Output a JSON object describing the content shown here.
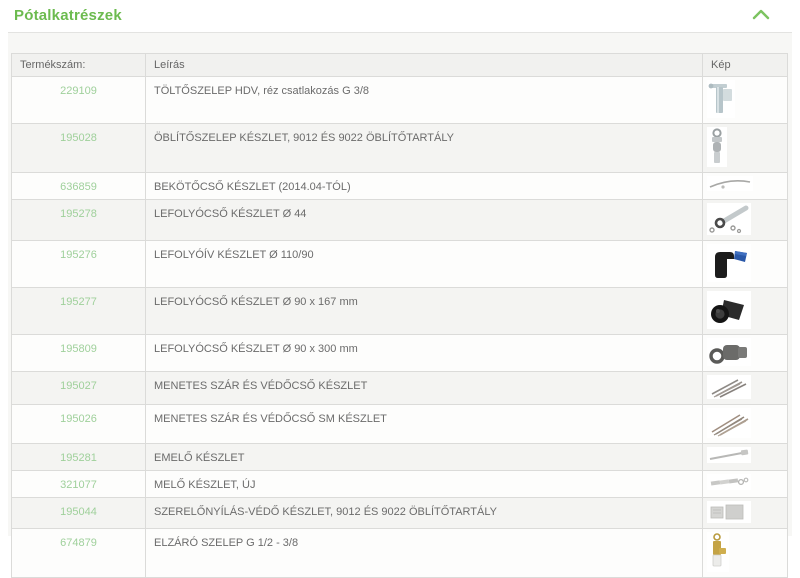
{
  "accordion": {
    "title": "Pótalkatrészek",
    "chevron_icon": "chevron-up",
    "accent_green": "#6cbb4f",
    "link_green": "#9fd09b"
  },
  "table": {
    "headers": {
      "product_number": "Termékszám:",
      "description": "Leírás",
      "image": "Kép"
    },
    "rows": [
      {
        "product_number": "229109",
        "description": "TÖLTŐSZELEP HDV, réz csatlakozás G 3/8",
        "image": "fill-valve-thumb"
      },
      {
        "product_number": "195028",
        "description": "ÖBLÍTŐSZELEP KÉSZLET, 9012 ÉS 9022 ÖBLÍTŐTARTÁLY",
        "image": "flush-valve-thumb"
      },
      {
        "product_number": "636859",
        "description": "BEKÖTŐCSŐ KÉSZLET (2014.04-TÓL)",
        "image": "curved-pipe-thumb"
      },
      {
        "product_number": "195278",
        "description": "LEFOLYÓCSŐ KÉSZLET Ø 44",
        "image": "pipe-parts-thumb"
      },
      {
        "product_number": "195276",
        "description": "LEFOLYÓÍV KÉSZLET Ø 110/90",
        "image": "elbow-thumb"
      },
      {
        "product_number": "195277",
        "description": "LEFOLYÓCSŐ KÉSZLET Ø 90 x 167 mm",
        "image": "fitting-black-thumb"
      },
      {
        "product_number": "195809",
        "description": "LEFOLYÓCSŐ KÉSZLET Ø 90 x 300 mm",
        "image": "fitting-gray-thumb"
      },
      {
        "product_number": "195027",
        "description": "MENETES SZÁR ÉS VÉDŐCSŐ KÉSZLET",
        "image": "rod-bundle-thumb"
      },
      {
        "product_number": "195026",
        "description": "MENETES SZÁR ÉS VÉDŐCSŐ SM KÉSZLET",
        "image": "rod-bundle-sm-thumb"
      },
      {
        "product_number": "195281",
        "description": "EMELŐ KÉSZLET",
        "image": "lever-thumb"
      },
      {
        "product_number": "321077",
        "description": "MELŐ KÉSZLET, ÚJ",
        "image": "parts-strip-thumb"
      },
      {
        "product_number": "195044",
        "description": "SZERELŐNYÍLÁS-VÉDŐ KÉSZLET, 9012 ÉS 9022 ÖBLÍTŐTARTÁLY",
        "image": "cover-thumb"
      },
      {
        "product_number": "674879",
        "description": "ELZÁRÓ SZELEP G 1/2 - 3/8",
        "image": "shutoff-valve-thumb"
      }
    ]
  }
}
